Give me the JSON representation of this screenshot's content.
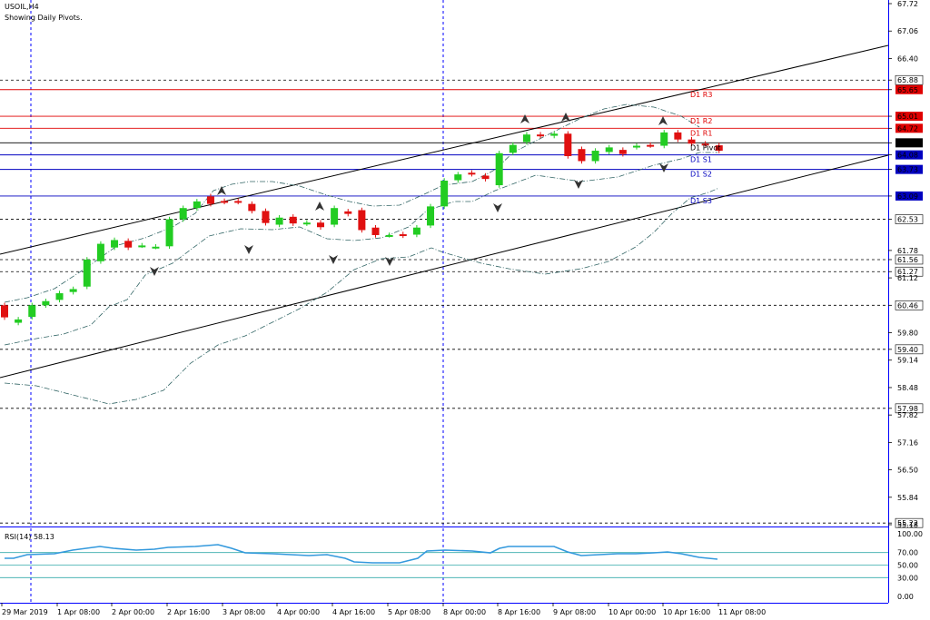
{
  "header": {
    "symbol": "USOIL,H4",
    "subtitle": "Showing Daily Pivots."
  },
  "rsi": {
    "label": "RSI(14) 58.13",
    "ticks": [
      "100.00",
      "70.00",
      "50.00",
      "30.00",
      "0.00"
    ],
    "levels": [
      70,
      50,
      30
    ]
  },
  "price_axis": [
    "67.72",
    "67.06",
    "66.40",
    "65.88",
    "65.65",
    "65.01",
    "64.72",
    "64.37",
    "64.08",
    "63.73",
    "63.09",
    "62.53",
    "61.78",
    "61.56",
    "61.27",
    "61.12",
    "60.46",
    "59.80",
    "59.40",
    "59.14",
    "58.48",
    "57.98",
    "57.82",
    "57.16",
    "56.50",
    "55.84",
    "55.22",
    "55.18"
  ],
  "time_axis": [
    "29 Mar 2019",
    "1 Apr 08:00",
    "2 Apr 00:00",
    "2 Apr 16:00",
    "3 Apr 08:00",
    "4 Apr 00:00",
    "4 Apr 16:00",
    "5 Apr 08:00",
    "8 Apr 00:00",
    "8 Apr 16:00",
    "9 Apr 08:00",
    "10 Apr 00:00",
    "10 Apr 16:00",
    "11 Apr 08:00"
  ],
  "pivots": [
    {
      "name": "D1 R3",
      "value": 65.65,
      "color": "#e00000"
    },
    {
      "name": "D1 R2",
      "value": 65.01,
      "color": "#e00000"
    },
    {
      "name": "D1 R1",
      "value": 64.72,
      "color": "#e00000"
    },
    {
      "name": "D1 Pivot",
      "value": 64.37,
      "color": "#000000"
    },
    {
      "name": "D1 S1",
      "value": 64.08,
      "color": "#0000c0"
    },
    {
      "name": "D1 S2",
      "value": 63.73,
      "color": "#0000c0"
    },
    {
      "name": "D1 S3",
      "value": 63.09,
      "color": "#0000c0"
    }
  ],
  "colors": {
    "bull": "#22cc22",
    "bear": "#e01010",
    "axis": "#0000ff",
    "rsi": "#3399dd",
    "levels": "#33aaaa"
  },
  "chart_data": {
    "type": "candlestick",
    "symbol": "USOIL,H4",
    "ylim": [
      55.18,
      67.72
    ],
    "dashed_levels": [
      65.88,
      62.53,
      61.56,
      61.27,
      60.46,
      59.4,
      57.98,
      55.22
    ],
    "candles": [
      [
        60.46,
        60.17
      ],
      [
        60.04,
        60.12
      ],
      [
        60.18,
        60.46
      ],
      [
        60.46,
        60.56
      ],
      [
        60.59,
        60.75
      ],
      [
        60.78,
        60.85
      ],
      [
        60.91,
        61.56
      ],
      [
        61.52,
        61.94
      ],
      [
        61.85,
        62.03
      ],
      [
        62.01,
        61.85
      ],
      [
        61.9,
        61.9
      ],
      [
        61.87,
        61.87
      ],
      [
        61.88,
        62.53
      ],
      [
        62.53,
        62.8
      ],
      [
        62.8,
        62.96
      ],
      [
        63.08,
        62.9
      ],
      [
        62.97,
        62.95
      ],
      [
        62.97,
        62.95
      ],
      [
        62.9,
        62.73
      ],
      [
        62.73,
        62.44
      ],
      [
        62.4,
        62.57
      ],
      [
        62.59,
        62.43
      ],
      [
        62.43,
        62.45
      ],
      [
        62.45,
        62.34
      ],
      [
        62.4,
        62.8
      ],
      [
        62.72,
        62.66
      ],
      [
        62.75,
        62.27
      ],
      [
        62.33,
        62.15
      ],
      [
        62.15,
        62.15
      ],
      [
        62.17,
        62.14
      ],
      [
        62.16,
        62.33
      ],
      [
        62.38,
        62.84
      ],
      [
        62.84,
        63.46
      ],
      [
        63.47,
        63.61
      ],
      [
        63.65,
        63.62
      ],
      [
        63.58,
        63.5
      ],
      [
        63.35,
        64.12
      ],
      [
        64.13,
        64.32
      ],
      [
        64.39,
        64.57
      ],
      [
        64.57,
        64.54
      ],
      [
        64.54,
        64.59
      ],
      [
        64.59,
        64.05
      ],
      [
        64.22,
        63.93
      ],
      [
        63.93,
        64.18
      ],
      [
        64.15,
        64.26
      ],
      [
        64.2,
        64.1
      ],
      [
        64.27,
        64.3
      ],
      [
        64.32,
        64.31
      ],
      [
        64.3,
        64.62
      ],
      [
        64.62,
        64.45
      ],
      [
        64.45,
        64.35
      ],
      [
        64.35,
        64.34
      ],
      [
        64.31,
        64.18
      ]
    ]
  }
}
